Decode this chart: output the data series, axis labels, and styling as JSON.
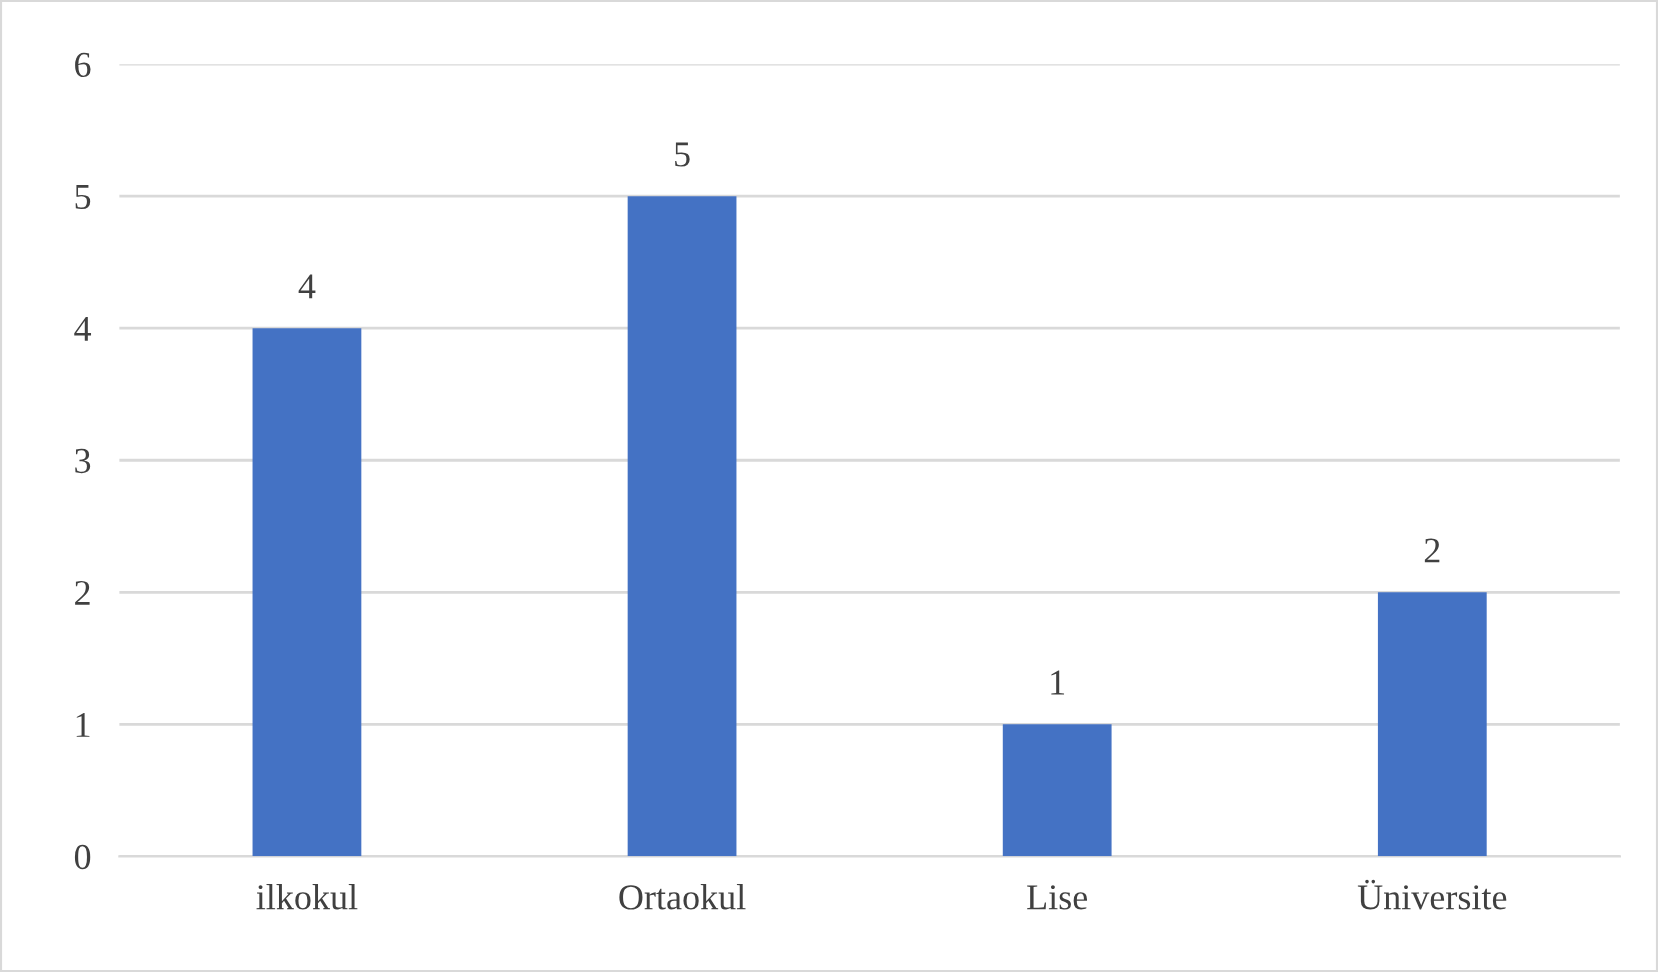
{
  "chart_data": {
    "type": "bar",
    "categories": [
      "ilkokul",
      "Ortaokul",
      "Lise",
      "Üniversite"
    ],
    "values": [
      4,
      5,
      1,
      2
    ],
    "color": "#4472c4",
    "ylim": [
      0,
      6
    ],
    "yticks": [
      0,
      1,
      2,
      3,
      4,
      5,
      6
    ],
    "grid": "y",
    "data_labels": true
  }
}
